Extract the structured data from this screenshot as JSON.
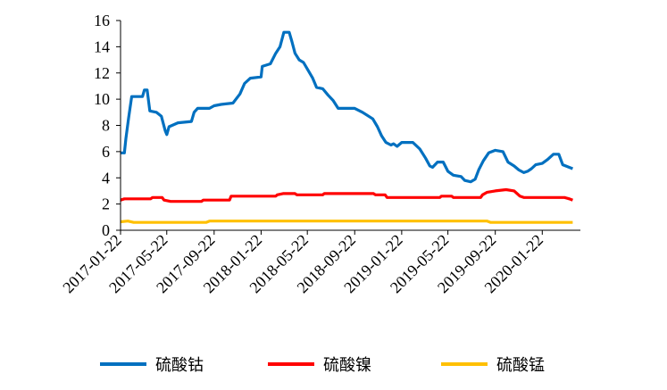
{
  "chart_data": {
    "type": "line",
    "title": "",
    "xlabel": "",
    "ylabel": "",
    "ylim": [
      0,
      16
    ],
    "y_ticks": [
      "0",
      "2",
      "4",
      "6",
      "8",
      "10",
      "12",
      "14",
      "16"
    ],
    "x_range": [
      "2017-01-22",
      "2020-04-30"
    ],
    "x_tick_labels": [
      "2017-01-22",
      "2017-05-22",
      "2017-09-22",
      "2018-01-22",
      "2018-05-22",
      "2018-09-22",
      "2019-01-22",
      "2019-05-22",
      "2019-09-22",
      "2020-01-22"
    ],
    "grid": false,
    "legend_position": "bottom",
    "series": [
      {
        "name": "硫酸钴",
        "color": "#0070C0",
        "points": [
          [
            "2017-01-22",
            5.9
          ],
          [
            "2017-02-01",
            5.9
          ],
          [
            "2017-02-05",
            7.0
          ],
          [
            "2017-02-12",
            8.6
          ],
          [
            "2017-02-20",
            10.2
          ],
          [
            "2017-03-20",
            10.2
          ],
          [
            "2017-03-25",
            10.7
          ],
          [
            "2017-04-01",
            10.7
          ],
          [
            "2017-04-08",
            9.1
          ],
          [
            "2017-04-25",
            9.0
          ],
          [
            "2017-05-08",
            8.7
          ],
          [
            "2017-05-18",
            7.6
          ],
          [
            "2017-05-22",
            7.3
          ],
          [
            "2017-05-28",
            7.9
          ],
          [
            "2017-06-20",
            8.2
          ],
          [
            "2017-07-25",
            8.3
          ],
          [
            "2017-08-01",
            9.0
          ],
          [
            "2017-08-10",
            9.3
          ],
          [
            "2017-09-10",
            9.3
          ],
          [
            "2017-09-22",
            9.5
          ],
          [
            "2017-10-10",
            9.6
          ],
          [
            "2017-11-10",
            9.7
          ],
          [
            "2017-11-28",
            10.4
          ],
          [
            "2017-12-10",
            11.2
          ],
          [
            "2017-12-25",
            11.6
          ],
          [
            "2018-01-22",
            11.7
          ],
          [
            "2018-01-25",
            12.5
          ],
          [
            "2018-02-15",
            12.7
          ],
          [
            "2018-03-01",
            13.5
          ],
          [
            "2018-03-12",
            14.0
          ],
          [
            "2018-03-22",
            15.1
          ],
          [
            "2018-04-05",
            15.1
          ],
          [
            "2018-04-12",
            14.4
          ],
          [
            "2018-04-20",
            13.5
          ],
          [
            "2018-05-01",
            13.0
          ],
          [
            "2018-05-12",
            12.8
          ],
          [
            "2018-05-22",
            12.3
          ],
          [
            "2018-06-05",
            11.6
          ],
          [
            "2018-06-15",
            10.9
          ],
          [
            "2018-07-01",
            10.8
          ],
          [
            "2018-07-15",
            10.3
          ],
          [
            "2018-07-28",
            9.9
          ],
          [
            "2018-08-10",
            9.3
          ],
          [
            "2018-09-22",
            9.3
          ],
          [
            "2018-10-12",
            9.0
          ],
          [
            "2018-10-28",
            8.7
          ],
          [
            "2018-11-08",
            8.5
          ],
          [
            "2018-11-20",
            7.9
          ],
          [
            "2018-12-01",
            7.2
          ],
          [
            "2018-12-12",
            6.7
          ],
          [
            "2018-12-25",
            6.5
          ],
          [
            "2019-01-01",
            6.6
          ],
          [
            "2019-01-10",
            6.4
          ],
          [
            "2019-01-22",
            6.7
          ],
          [
            "2019-02-20",
            6.7
          ],
          [
            "2019-03-10",
            6.2
          ],
          [
            "2019-03-25",
            5.5
          ],
          [
            "2019-04-05",
            4.9
          ],
          [
            "2019-04-12",
            4.8
          ],
          [
            "2019-04-25",
            5.2
          ],
          [
            "2019-05-10",
            5.2
          ],
          [
            "2019-05-22",
            4.5
          ],
          [
            "2019-06-05",
            4.2
          ],
          [
            "2019-06-25",
            4.1
          ],
          [
            "2019-07-05",
            3.8
          ],
          [
            "2019-07-20",
            3.7
          ],
          [
            "2019-08-01",
            3.9
          ],
          [
            "2019-08-10",
            4.6
          ],
          [
            "2019-08-22",
            5.3
          ],
          [
            "2019-09-05",
            5.9
          ],
          [
            "2019-09-22",
            6.1
          ],
          [
            "2019-10-12",
            6.0
          ],
          [
            "2019-10-25",
            5.2
          ],
          [
            "2019-11-10",
            4.9
          ],
          [
            "2019-11-22",
            4.6
          ],
          [
            "2019-12-05",
            4.4
          ],
          [
            "2019-12-15",
            4.5
          ],
          [
            "2019-12-25",
            4.7
          ],
          [
            "2020-01-05",
            5.0
          ],
          [
            "2020-01-22",
            5.1
          ],
          [
            "2020-02-05",
            5.4
          ],
          [
            "2020-02-20",
            5.8
          ],
          [
            "2020-03-05",
            5.8
          ],
          [
            "2020-03-15",
            5.0
          ],
          [
            "2020-04-01",
            4.8
          ],
          [
            "2020-04-10",
            4.7
          ]
        ]
      },
      {
        "name": "硫酸镍",
        "color": "#FF0000",
        "points": [
          [
            "2017-01-22",
            2.3
          ],
          [
            "2017-02-01",
            2.4
          ],
          [
            "2017-04-10",
            2.4
          ],
          [
            "2017-04-15",
            2.5
          ],
          [
            "2017-05-10",
            2.5
          ],
          [
            "2017-05-15",
            2.3
          ],
          [
            "2017-06-01",
            2.2
          ],
          [
            "2017-08-20",
            2.2
          ],
          [
            "2017-08-25",
            2.3
          ],
          [
            "2017-11-01",
            2.3
          ],
          [
            "2017-11-05",
            2.6
          ],
          [
            "2018-03-01",
            2.6
          ],
          [
            "2018-03-05",
            2.7
          ],
          [
            "2018-03-20",
            2.8
          ],
          [
            "2018-04-20",
            2.8
          ],
          [
            "2018-04-25",
            2.7
          ],
          [
            "2018-07-01",
            2.7
          ],
          [
            "2018-07-05",
            2.8
          ],
          [
            "2018-11-10",
            2.8
          ],
          [
            "2018-11-15",
            2.7
          ],
          [
            "2018-12-10",
            2.7
          ],
          [
            "2018-12-15",
            2.5
          ],
          [
            "2019-05-01",
            2.5
          ],
          [
            "2019-05-05",
            2.6
          ],
          [
            "2019-06-01",
            2.6
          ],
          [
            "2019-06-05",
            2.5
          ],
          [
            "2019-08-15",
            2.5
          ],
          [
            "2019-08-20",
            2.7
          ],
          [
            "2019-09-01",
            2.9
          ],
          [
            "2019-09-22",
            3.0
          ],
          [
            "2019-10-20",
            3.1
          ],
          [
            "2019-11-10",
            3.0
          ],
          [
            "2019-11-25",
            2.6
          ],
          [
            "2019-12-05",
            2.5
          ],
          [
            "2020-03-20",
            2.5
          ],
          [
            "2020-04-01",
            2.4
          ],
          [
            "2020-04-10",
            2.3
          ]
        ]
      },
      {
        "name": "硫酸锰",
        "color": "#FFC000",
        "points": [
          [
            "2017-01-22",
            0.65
          ],
          [
            "2017-02-10",
            0.7
          ],
          [
            "2017-02-25",
            0.6
          ],
          [
            "2017-09-01",
            0.6
          ],
          [
            "2017-09-10",
            0.7
          ],
          [
            "2019-09-01",
            0.7
          ],
          [
            "2019-09-10",
            0.6
          ],
          [
            "2020-04-10",
            0.6
          ]
        ]
      }
    ]
  }
}
